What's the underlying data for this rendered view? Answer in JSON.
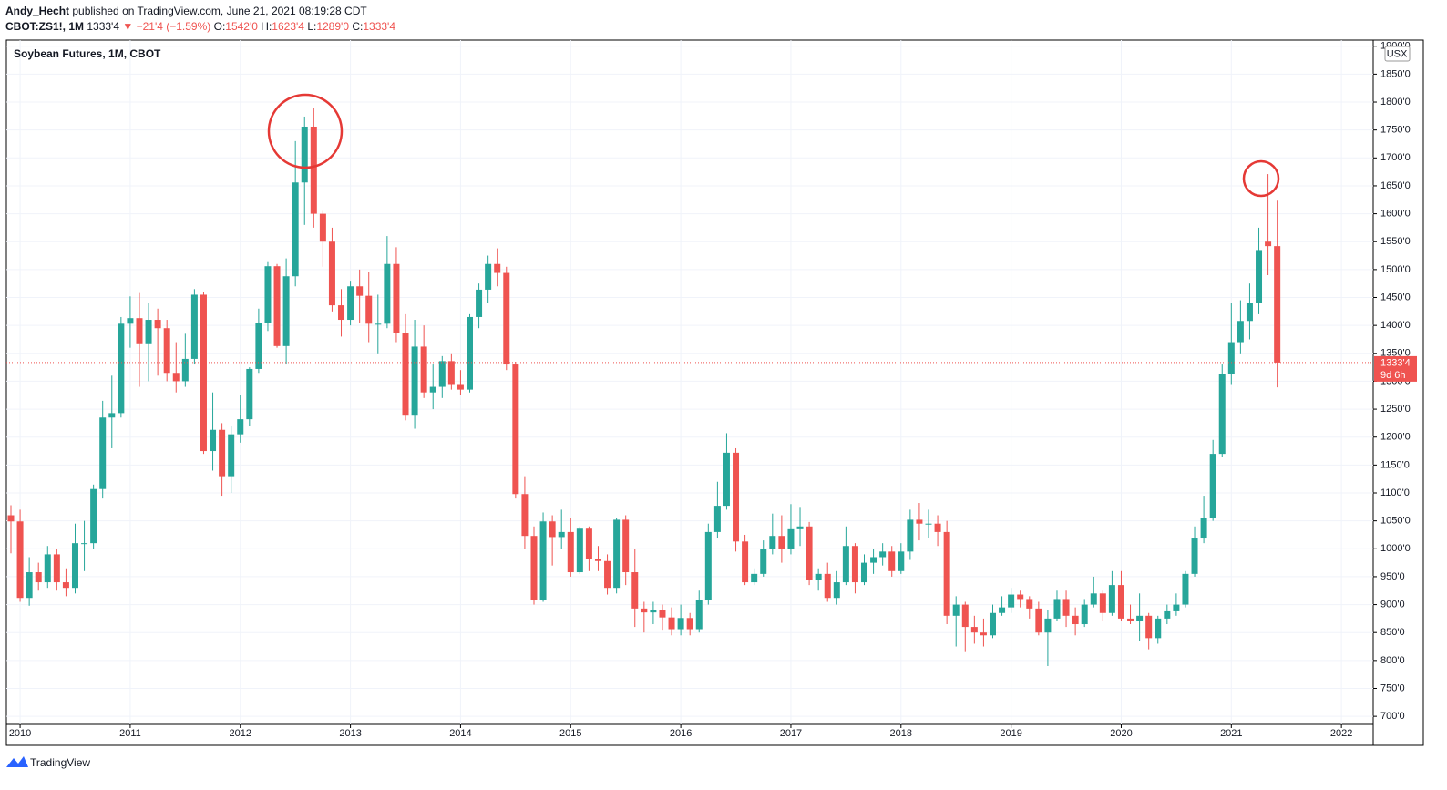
{
  "header": {
    "author": "Andy_Hecht",
    "published": "published on TradingView.com, June 21, 2021 08:19:28 CDT",
    "symbol": "CBOT:ZS1!, 1M",
    "last": "1333'4",
    "change": "▼ −21'4 (−1.59%)",
    "o_label": "O:",
    "o": "1542'0",
    "h_label": "H:",
    "h": "1623'4",
    "l_label": "L:",
    "l": "1289'0",
    "c_label": "C:",
    "c": "1333'4"
  },
  "footer": {
    "brand": "TradingView"
  },
  "chart_data": {
    "type": "candlestick",
    "title": "Soybean Futures, 1M, CBOT",
    "currency": "USX",
    "x": [
      "2009-12",
      "2010-01",
      "2010-02",
      "2010-03",
      "2010-04",
      "2010-05",
      "2010-06",
      "2010-07",
      "2010-08",
      "2010-09",
      "2010-10",
      "2010-11",
      "2010-12",
      "2011-01",
      "2011-02",
      "2011-03",
      "2011-04",
      "2011-05",
      "2011-06",
      "2011-07",
      "2011-08",
      "2011-09",
      "2011-10",
      "2011-11",
      "2011-12",
      "2012-01",
      "2012-02",
      "2012-03",
      "2012-04",
      "2012-05",
      "2012-06",
      "2012-07",
      "2012-08",
      "2012-09",
      "2012-10",
      "2012-11",
      "2012-12",
      "2013-01",
      "2013-02",
      "2013-03",
      "2013-04",
      "2013-05",
      "2013-06",
      "2013-07",
      "2013-08",
      "2013-09",
      "2013-10",
      "2013-11",
      "2013-12",
      "2014-01",
      "2014-02",
      "2014-03",
      "2014-04",
      "2014-05",
      "2014-06",
      "2014-07",
      "2014-08",
      "2014-09",
      "2014-10",
      "2014-11",
      "2014-12",
      "2015-01",
      "2015-02",
      "2015-03",
      "2015-04",
      "2015-05",
      "2015-06",
      "2015-07",
      "2015-08",
      "2015-09",
      "2015-10",
      "2015-11",
      "2015-12",
      "2016-01",
      "2016-02",
      "2016-03",
      "2016-04",
      "2016-05",
      "2016-06",
      "2016-07",
      "2016-08",
      "2016-09",
      "2016-10",
      "2016-11",
      "2016-12",
      "2017-01",
      "2017-02",
      "2017-03",
      "2017-04",
      "2017-05",
      "2017-06",
      "2017-07",
      "2017-08",
      "2017-09",
      "2017-10",
      "2017-11",
      "2017-12",
      "2018-01",
      "2018-02",
      "2018-03",
      "2018-04",
      "2018-05",
      "2018-06",
      "2018-07",
      "2018-08",
      "2018-09",
      "2018-10",
      "2018-11",
      "2018-12",
      "2019-01",
      "2019-02",
      "2019-03",
      "2019-04",
      "2019-05",
      "2019-06",
      "2019-07",
      "2019-08",
      "2019-09",
      "2019-10",
      "2019-11",
      "2019-12",
      "2020-01",
      "2020-02",
      "2020-03",
      "2020-04",
      "2020-05",
      "2020-06",
      "2020-07",
      "2020-08",
      "2020-09",
      "2020-10",
      "2020-11",
      "2020-12",
      "2021-01",
      "2021-02",
      "2021-03",
      "2021-04",
      "2021-05",
      "2021-06"
    ],
    "open": [
      1060,
      1049,
      912,
      958,
      940,
      990,
      940,
      930,
      1010,
      1010,
      1107,
      1235,
      1243,
      1403,
      1413,
      1368,
      1410,
      1395,
      1315,
      1300,
      1340,
      1455,
      1175,
      1213,
      1130,
      1205,
      1232,
      1322,
      1405,
      1506,
      1363,
      1488,
      1656,
      1756,
      1600,
      1550,
      1436,
      1410,
      1470,
      1453,
      1403,
      1403,
      1510,
      1387,
      1240,
      1362,
      1280,
      1290,
      1336,
      1295,
      1285,
      1415,
      1464,
      1510,
      1494,
      1330,
      1098,
      1023,
      909,
      1049,
      1021,
      1030,
      958,
      1036,
      982,
      978,
      930,
      1052,
      958,
      893,
      886,
      890,
      877,
      856,
      876,
      856,
      908,
      1030,
      1077,
      1172,
      1013,
      940,
      955,
      1000,
      1023,
      1000,
      1035,
      1040,
      945,
      955,
      912,
      940,
      1005,
      940,
      975,
      985,
      995,
      960,
      995,
      1052,
      1045,
      1045,
      1030,
      880,
      900,
      860,
      850,
      845,
      885,
      895,
      918,
      910,
      893,
      850,
      875,
      910,
      880,
      865,
      900,
      920,
      885,
      935,
      875,
      870,
      880,
      840,
      875,
      888,
      900,
      955,
      1020,
      1055,
      1170,
      1313,
      1370,
      1408,
      1440,
      1550,
      1542
    ],
    "high": [
      1078,
      1070,
      985,
      975,
      1005,
      1000,
      965,
      1045,
      1050,
      1115,
      1265,
      1310,
      1415,
      1452,
      1458,
      1440,
      1430,
      1410,
      1370,
      1385,
      1465,
      1460,
      1280,
      1225,
      1220,
      1275,
      1325,
      1430,
      1515,
      1510,
      1520,
      1730,
      1774,
      1790,
      1605,
      1575,
      1465,
      1480,
      1500,
      1495,
      1455,
      1560,
      1540,
      1420,
      1410,
      1400,
      1330,
      1345,
      1350,
      1320,
      1420,
      1475,
      1525,
      1538,
      1505,
      1335,
      1130,
      1040,
      1065,
      1060,
      1070,
      1055,
      1040,
      1040,
      1005,
      990,
      1055,
      1060,
      1000,
      905,
      905,
      900,
      895,
      900,
      885,
      925,
      1045,
      1120,
      1207,
      1180,
      1025,
      965,
      1015,
      1063,
      1060,
      1080,
      1075,
      1048,
      965,
      975,
      960,
      1040,
      1010,
      990,
      1000,
      1010,
      1005,
      1010,
      1070,
      1082,
      1070,
      1060,
      1050,
      915,
      905,
      880,
      875,
      900,
      915,
      930,
      925,
      915,
      905,
      890,
      925,
      925,
      895,
      910,
      950,
      925,
      960,
      960,
      900,
      920,
      885,
      880,
      900,
      920,
      960,
      1040,
      1095,
      1195,
      1330,
      1440,
      1445,
      1475,
      1575,
      1671,
      1623.5
    ],
    "low": [
      992,
      905,
      898,
      925,
      930,
      925,
      915,
      920,
      960,
      1000,
      1090,
      1180,
      1235,
      1360,
      1290,
      1300,
      1310,
      1300,
      1280,
      1290,
      1330,
      1170,
      1140,
      1095,
      1100,
      1190,
      1220,
      1315,
      1390,
      1360,
      1330,
      1470,
      1580,
      1575,
      1505,
      1425,
      1380,
      1400,
      1405,
      1370,
      1350,
      1395,
      1370,
      1230,
      1215,
      1270,
      1250,
      1270,
      1285,
      1275,
      1280,
      1395,
      1440,
      1470,
      1320,
      1090,
      1000,
      900,
      905,
      970,
      1000,
      950,
      955,
      960,
      960,
      918,
      920,
      935,
      860,
      850,
      865,
      855,
      845,
      845,
      845,
      850,
      900,
      1020,
      1070,
      995,
      935,
      935,
      950,
      990,
      975,
      990,
      1005,
      935,
      925,
      905,
      900,
      935,
      920,
      935,
      955,
      970,
      950,
      955,
      980,
      1015,
      1020,
      1005,
      865,
      825,
      815,
      830,
      825,
      840,
      880,
      885,
      895,
      875,
      845,
      790,
      870,
      860,
      845,
      860,
      895,
      870,
      880,
      870,
      865,
      835,
      820,
      830,
      865,
      880,
      895,
      950,
      1010,
      1050,
      1165,
      1295,
      1350,
      1375,
      1420,
      1490,
      1289
    ],
    "close": [
      1049,
      912,
      958,
      940,
      990,
      940,
      930,
      1010,
      1010,
      1107,
      1235,
      1243,
      1403,
      1413,
      1368,
      1410,
      1395,
      1315,
      1300,
      1340,
      1455,
      1175,
      1213,
      1130,
      1205,
      1232,
      1322,
      1405,
      1506,
      1363,
      1488,
      1656,
      1756,
      1600,
      1550,
      1436,
      1410,
      1470,
      1453,
      1403,
      1403,
      1510,
      1387,
      1240,
      1362,
      1280,
      1290,
      1336,
      1295,
      1285,
      1415,
      1464,
      1510,
      1494,
      1330,
      1098,
      1023,
      909,
      1049,
      1021,
      1030,
      958,
      1036,
      982,
      978,
      930,
      1052,
      958,
      893,
      886,
      890,
      877,
      856,
      876,
      856,
      908,
      1030,
      1077,
      1172,
      1013,
      940,
      955,
      1000,
      1023,
      1000,
      1035,
      1040,
      945,
      955,
      912,
      940,
      1005,
      940,
      975,
      985,
      995,
      960,
      995,
      1052,
      1045,
      1045,
      1030,
      880,
      900,
      860,
      850,
      845,
      885,
      895,
      918,
      910,
      893,
      850,
      875,
      910,
      880,
      865,
      900,
      920,
      885,
      935,
      875,
      870,
      880,
      840,
      875,
      888,
      900,
      955,
      1020,
      1055,
      1170,
      1313,
      1370,
      1408,
      1440,
      1535,
      1542,
      1333.5
    ],
    "up_color": "#26a69a",
    "down_color": "#ef5350",
    "ylim": [
      648,
      1911
    ],
    "yticks": [
      {
        "value": 700,
        "label": "700'0"
      },
      {
        "value": 750,
        "label": "750'0"
      },
      {
        "value": 800,
        "label": "800'0"
      },
      {
        "value": 850,
        "label": "850'0"
      },
      {
        "value": 900,
        "label": "900'0"
      },
      {
        "value": 950,
        "label": "950'0"
      },
      {
        "value": 1000,
        "label": "1000'0"
      },
      {
        "value": 1050,
        "label": "1050'0"
      },
      {
        "value": 1100,
        "label": "1100'0"
      },
      {
        "value": 1150,
        "label": "1150'0"
      },
      {
        "value": 1200,
        "label": "1200'0"
      },
      {
        "value": 1250,
        "label": "1250'0"
      },
      {
        "value": 1300,
        "label": "1300'0"
      },
      {
        "value": 1350,
        "label": "1350'0"
      },
      {
        "value": 1400,
        "label": "1400'0"
      },
      {
        "value": 1450,
        "label": "1450'0"
      },
      {
        "value": 1500,
        "label": "1500'0"
      },
      {
        "value": 1550,
        "label": "1550'0"
      },
      {
        "value": 1600,
        "label": "1600'0"
      },
      {
        "value": 1650,
        "label": "1650'0"
      },
      {
        "value": 1700,
        "label": "1700'0"
      },
      {
        "value": 1750,
        "label": "1750'0"
      },
      {
        "value": 1800,
        "label": "1800'0"
      },
      {
        "value": 1850,
        "label": "1850'0"
      },
      {
        "value": 1900,
        "label": "1900'0"
      }
    ],
    "xticks": [
      2010,
      2011,
      2012,
      2013,
      2014,
      2015,
      2016,
      2017,
      2018,
      2019,
      2020,
      2021,
      2022
    ],
    "grid": true,
    "last_price": {
      "value": 1333.5,
      "label": "1333'4"
    },
    "countdown": "9d 6h"
  }
}
